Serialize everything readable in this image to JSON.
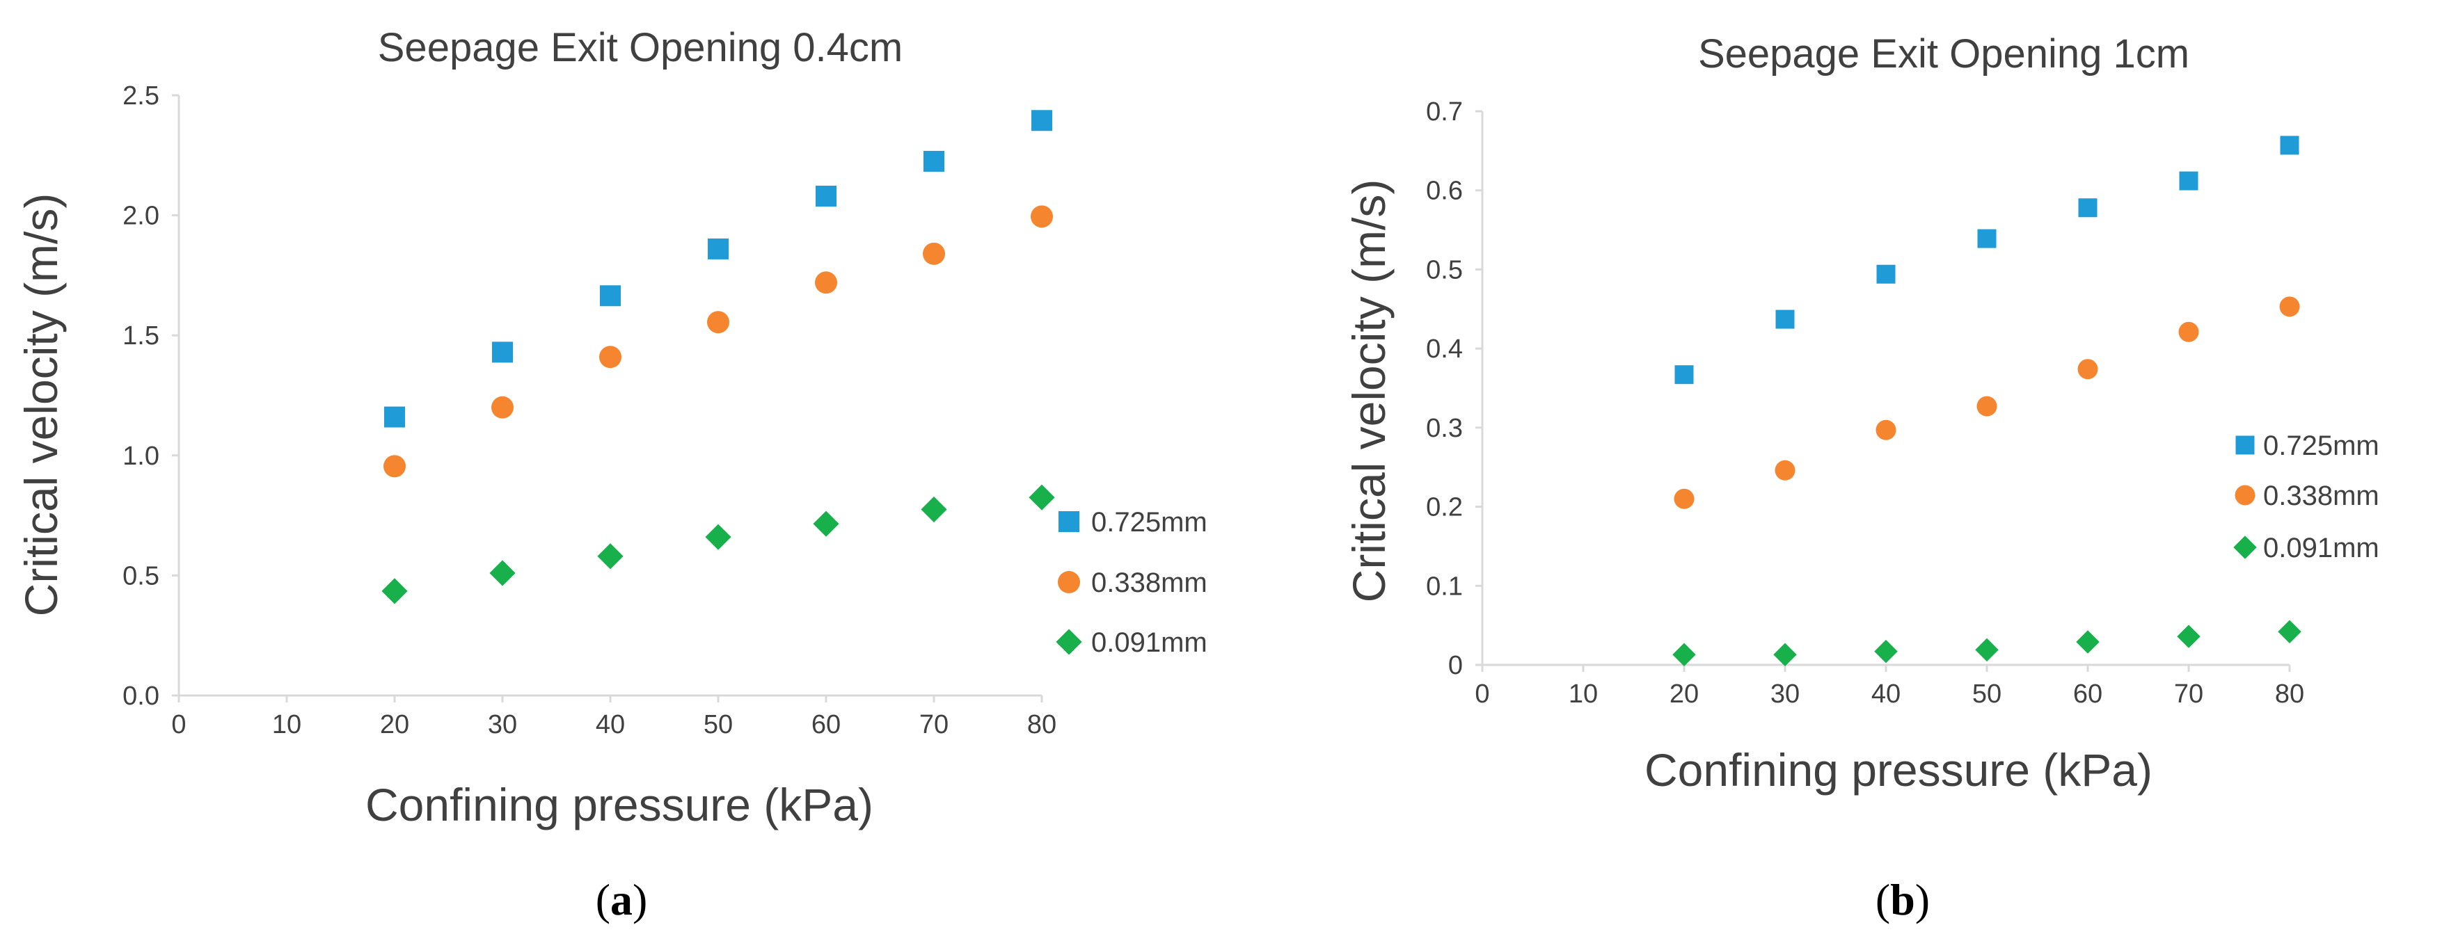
{
  "chart_data": [
    {
      "type": "scatter",
      "panel": "a",
      "title": "Seepage Exit Opening 0.4cm",
      "xlabel": "Confining pressure (kPa)",
      "ylabel": "Critical velocity (m/s)",
      "xlim": [
        0,
        80
      ],
      "ylim": [
        0,
        2.5
      ],
      "xticks": [
        "0",
        "10",
        "20",
        "30",
        "40",
        "50",
        "60",
        "70",
        "80"
      ],
      "yticks": [
        "0.0",
        "0.5",
        "1.0",
        "1.5",
        "2.0",
        "2.5"
      ],
      "x": [
        20,
        30,
        40,
        50,
        60,
        70,
        80
      ],
      "series": [
        {
          "name": "0.725mm",
          "marker": "square",
          "color": "#1f9bd7",
          "values": [
            1.16,
            1.43,
            1.665,
            1.86,
            2.08,
            2.225,
            2.395
          ]
        },
        {
          "name": "0.338mm",
          "marker": "circle",
          "color": "#f5862f",
          "values": [
            0.955,
            1.2,
            1.41,
            1.555,
            1.72,
            1.84,
            1.995
          ]
        },
        {
          "name": "0.091mm",
          "marker": "diamond",
          "color": "#18b04b",
          "values": [
            0.435,
            0.51,
            0.58,
            0.66,
            0.715,
            0.775,
            0.825
          ]
        }
      ],
      "legend_position": "right",
      "caption": "(a)"
    },
    {
      "type": "scatter",
      "panel": "b",
      "title": "Seepage Exit Opening 1cm",
      "xlabel": "Confining pressure (kPa)",
      "ylabel": "Critical  velocity (m/s)",
      "xlim": [
        0,
        80
      ],
      "ylim": [
        0,
        0.7
      ],
      "xticks": [
        "0",
        "10",
        "20",
        "30",
        "40",
        "50",
        "60",
        "70",
        "80"
      ],
      "yticks": [
        "0",
        "0.1",
        "0.2",
        "0.3",
        "0.4",
        "0.5",
        "0.6",
        "0.7"
      ],
      "x": [
        20,
        30,
        40,
        50,
        60,
        70,
        80
      ],
      "series": [
        {
          "name": "0.725mm",
          "marker": "square",
          "color": "#1f9bd7",
          "values": [
            0.367,
            0.437,
            0.494,
            0.539,
            0.578,
            0.612,
            0.657
          ]
        },
        {
          "name": "0.338mm",
          "marker": "circle",
          "color": "#f5862f",
          "values": [
            0.21,
            0.246,
            0.297,
            0.327,
            0.374,
            0.421,
            0.453
          ]
        },
        {
          "name": "0.091mm",
          "marker": "diamond",
          "color": "#18b04b",
          "values": [
            0.013,
            0.013,
            0.017,
            0.019,
            0.029,
            0.036,
            0.042
          ]
        }
      ],
      "legend_position": "right",
      "caption": "(b)"
    }
  ]
}
